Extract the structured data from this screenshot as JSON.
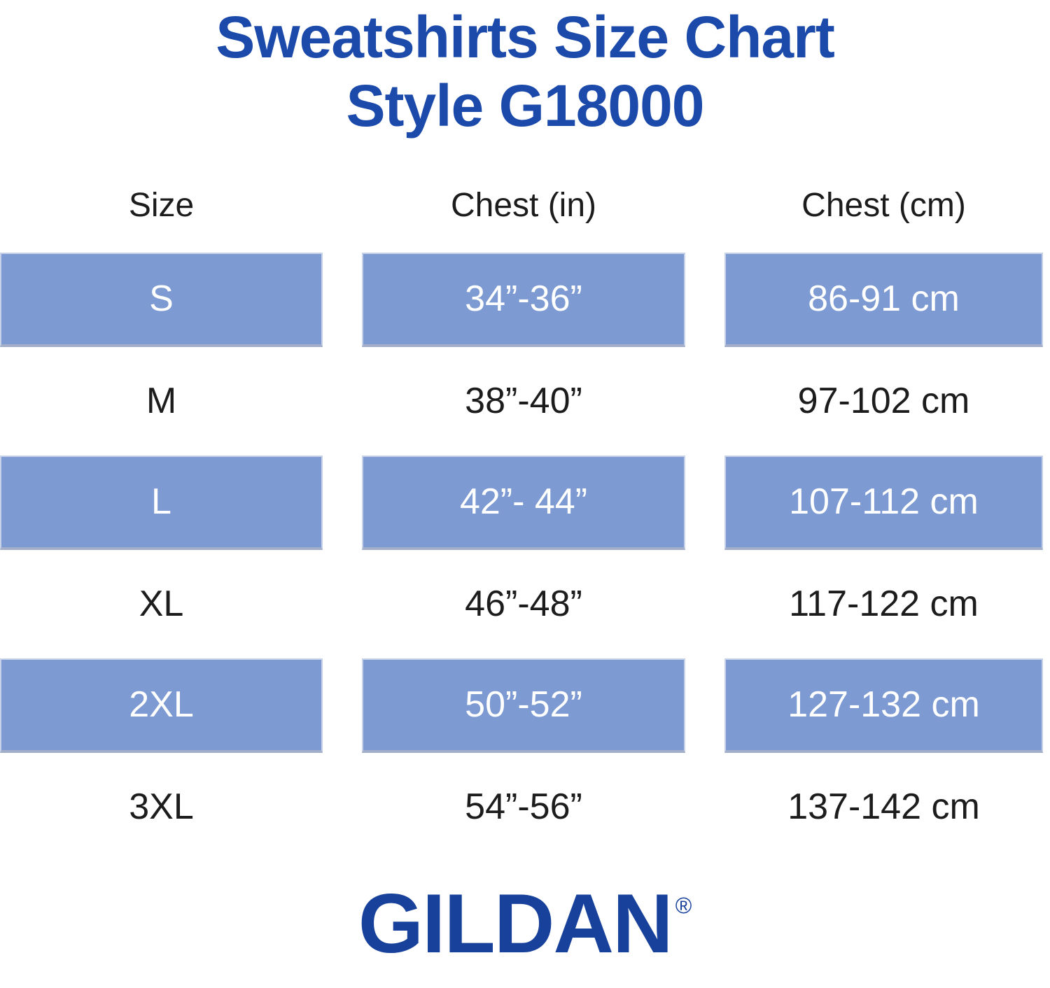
{
  "title": {
    "line1": "Sweatshirts Size Chart",
    "line2": "Style G18000",
    "color": "#1b4aab"
  },
  "chart_data": {
    "type": "table",
    "title": "Sweatshirts Size Chart Style G18000",
    "columns": [
      "Size",
      "Chest (in)",
      "Chest (cm)"
    ],
    "rows": [
      [
        "S",
        "34”-36”",
        "86-91 cm"
      ],
      [
        "M",
        "38”-40”",
        "97-102 cm"
      ],
      [
        "L",
        "42”- 44”",
        "107-112 cm"
      ],
      [
        "XL",
        "46”-48”",
        "117-122 cm"
      ],
      [
        "2XL",
        "50”-52”",
        "127-132 cm"
      ],
      [
        "3XL",
        "54”-56”",
        "137-142 cm"
      ]
    ],
    "highlighted_rows": [
      "S",
      "L",
      "2XL"
    ],
    "highlight_color": "#7d9ad2",
    "highlight_text_color": "#ffffff",
    "body_text_color": "#1c1c1c",
    "grid": "none",
    "layout": "three-column table, header row unfilled, alternating blue bands starting at row S"
  },
  "footer": {
    "brand": "GILDAN",
    "registered_mark": "®",
    "color": "#17419b"
  }
}
